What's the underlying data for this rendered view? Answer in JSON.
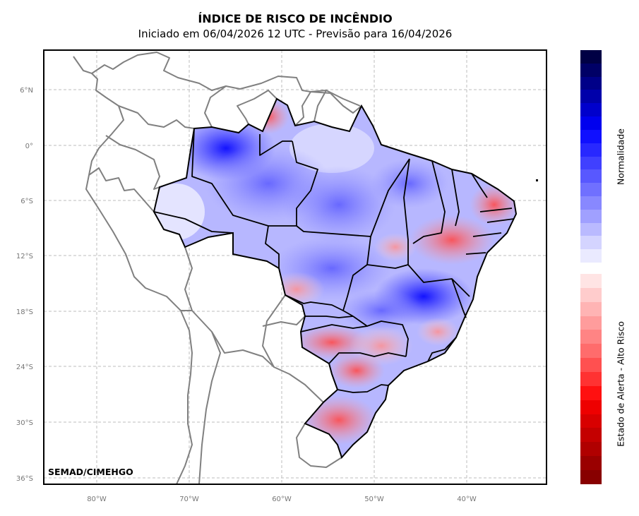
{
  "title": "ÍNDICE DE RISCO DE INCÊNDIO",
  "subtitle": "Iniciado em 06/04/2026 12 UTC - Previsão para 16/04/2026",
  "credit": "SEMAD/CIMEHGO",
  "map": {
    "lon_range": [
      -86,
      -31
    ],
    "lat_range": [
      -37,
      10
    ],
    "lat_ticks": [
      "6°N",
      "0°",
      "6°S",
      "12°S",
      "18°S",
      "24°S",
      "30°S",
      "36°S"
    ],
    "lon_ticks": [
      "80°W",
      "70°W",
      "60°W",
      "50°W",
      "40°W"
    ],
    "gridlines": true,
    "projection": "PlateCarree"
  },
  "colorbar": {
    "upper_label": "Normalidade",
    "lower_label": "Estado de Alerta - Alto Risco",
    "blue_colors": [
      "#000044",
      "#000066",
      "#000088",
      "#0000aa",
      "#0000cc",
      "#0000ee",
      "#1010ff",
      "#2828ff",
      "#4040ff",
      "#5858ff",
      "#7070ff",
      "#8888ff",
      "#a0a0ff",
      "#babaff",
      "#d4d4ff",
      "#eaeaff"
    ],
    "red_colors": [
      "#ffe4e4",
      "#ffcccc",
      "#ffb4b4",
      "#ff9c9c",
      "#ff8484",
      "#ff6c6c",
      "#ff5050",
      "#ff3232",
      "#ff1010",
      "#ee0000",
      "#d80000",
      "#c40000",
      "#b00000",
      "#9a0000",
      "#880000"
    ]
  }
}
